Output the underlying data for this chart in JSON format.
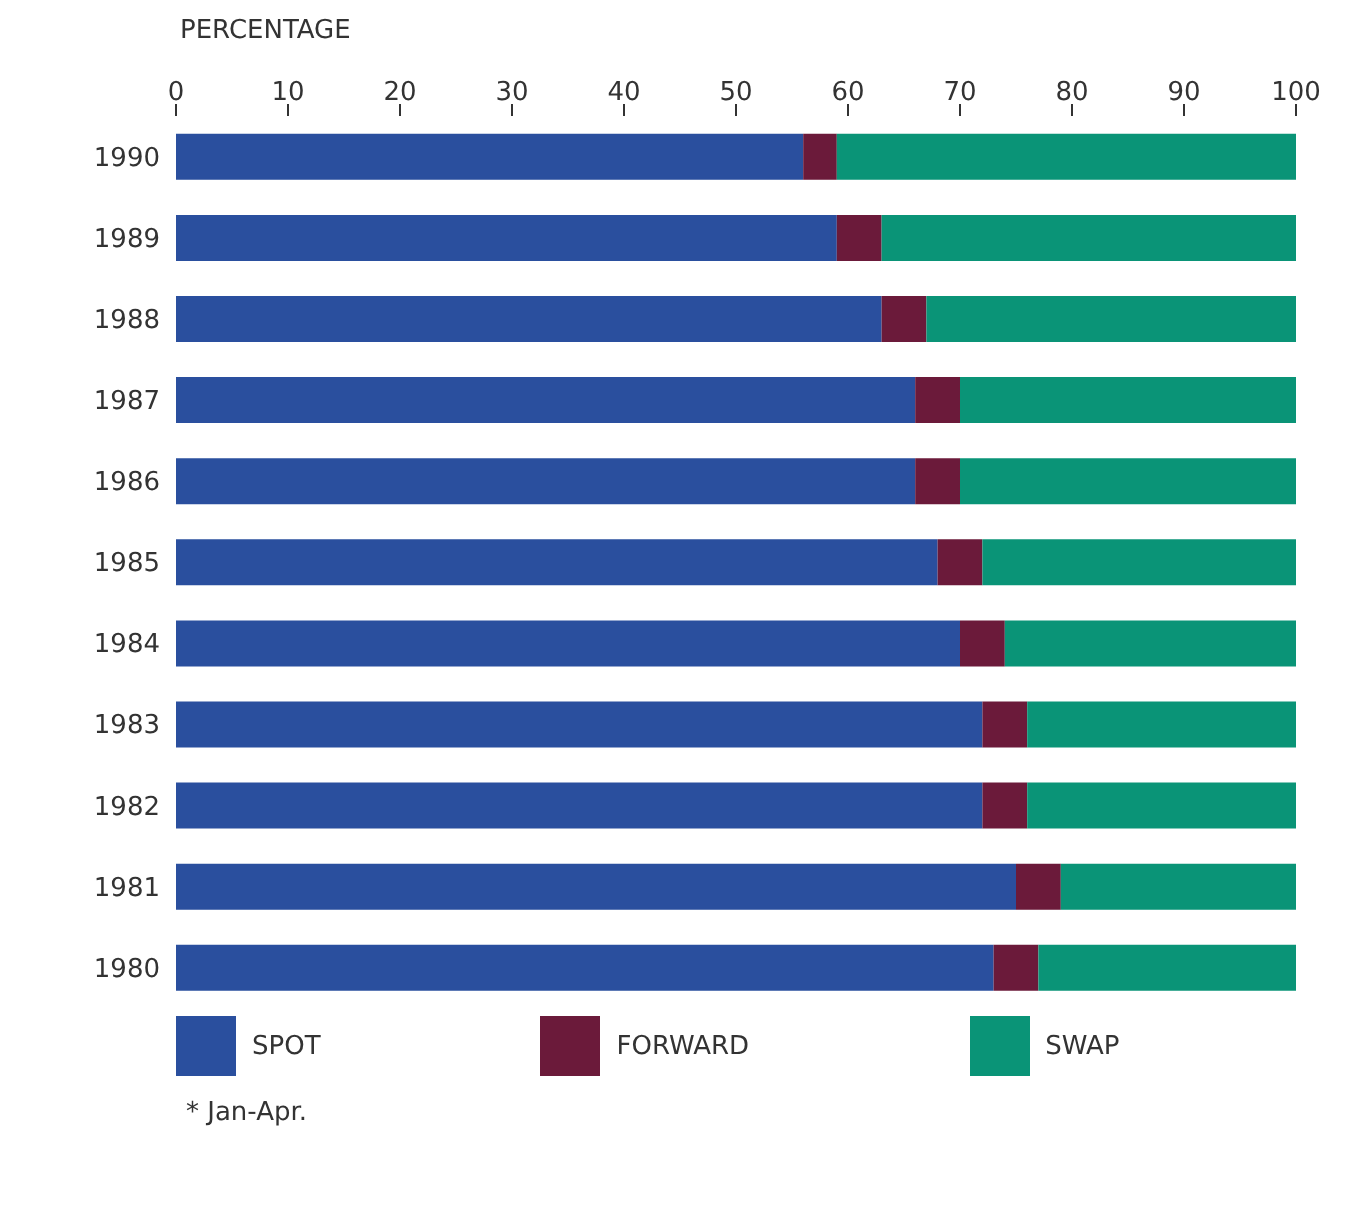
{
  "chart_data": {
    "type": "bar",
    "orientation": "horizontal",
    "stacked": true,
    "xlabel": "PERCENTAGE",
    "categories": [
      "1990",
      "1989",
      "1988",
      "1987",
      "1986",
      "1985",
      "1984",
      "1983",
      "1982",
      "1981",
      "1980"
    ],
    "series": [
      {
        "name": "SPOT",
        "color": "#2a4f9e",
        "values": [
          56,
          59,
          63,
          66,
          66,
          68,
          70,
          72,
          72,
          75,
          73
        ]
      },
      {
        "name": "FORWARD",
        "color": "#6b1a3a",
        "values": [
          3,
          4,
          4,
          4,
          4,
          4,
          4,
          4,
          4,
          4,
          4
        ]
      },
      {
        "name": "SWAP",
        "color": "#0a9477",
        "values": [
          41,
          37,
          33,
          30,
          30,
          28,
          26,
          24,
          24,
          21,
          23
        ]
      }
    ],
    "xlim": [
      0,
      100
    ],
    "xticks": [
      0,
      10,
      20,
      30,
      40,
      50,
      60,
      70,
      80,
      90,
      100
    ],
    "grid": false,
    "legend": "bottom",
    "annotations": [
      "* Jan-Apr."
    ]
  }
}
